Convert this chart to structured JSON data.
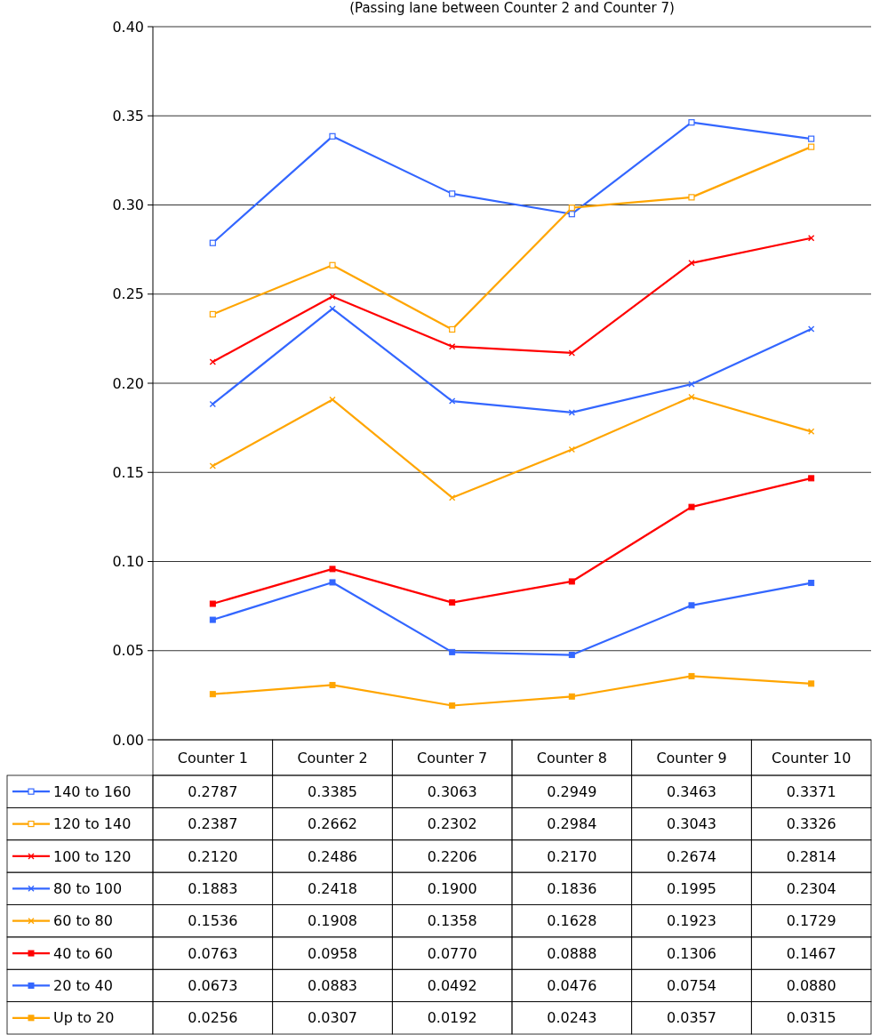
{
  "chart_data": {
    "type": "line",
    "subtitle": "(Passing lane between Counter 2 and Counter 7)",
    "categories": [
      "Counter 1",
      "Counter 2",
      "Counter 7",
      "Counter 8",
      "Counter 9",
      "Counter 10"
    ],
    "ylim": [
      0,
      0.4
    ],
    "yticks": [
      {
        "value": 0,
        "label": "0.00"
      },
      {
        "value": 0.05,
        "label": "0.05"
      },
      {
        "value": 0.1,
        "label": "0.10"
      },
      {
        "value": 0.15,
        "label": "0.15"
      },
      {
        "value": 0.2,
        "label": "0.20"
      },
      {
        "value": 0.25,
        "label": "0.25"
      },
      {
        "value": 0.3,
        "label": "0.30"
      },
      {
        "value": 0.35,
        "label": "0.35"
      },
      {
        "value": 0.4,
        "label": "0.40"
      }
    ],
    "grid": "y",
    "legend": "bottom",
    "line_style": "solid",
    "series": [
      {
        "name": "140 to 160",
        "color": "#3366ff",
        "marker": "square-open",
        "values": [
          0.2787,
          0.3385,
          0.3063,
          0.2949,
          0.3463,
          0.3371
        ],
        "value_labels": [
          "0.2787",
          "0.3385",
          "0.3063",
          "0.2949",
          "0.3463",
          "0.3371"
        ]
      },
      {
        "name": "120 to 140",
        "color": "#ffa500",
        "marker": "square-open",
        "values": [
          0.2387,
          0.2662,
          0.2302,
          0.2984,
          0.3043,
          0.3326
        ],
        "value_labels": [
          "0.2387",
          "0.2662",
          "0.2302",
          "0.2984",
          "0.3043",
          "0.3326"
        ]
      },
      {
        "name": "100 to 120",
        "color": "#ff0000",
        "marker": "cross",
        "values": [
          0.212,
          0.2486,
          0.2206,
          0.217,
          0.2674,
          0.2814
        ],
        "value_labels": [
          "0.2120",
          "0.2486",
          "0.2206",
          "0.2170",
          "0.2674",
          "0.2814"
        ]
      },
      {
        "name": "80 to 100",
        "color": "#3366ff",
        "marker": "cross",
        "values": [
          0.1883,
          0.2418,
          0.19,
          0.1836,
          0.1995,
          0.2304
        ],
        "value_labels": [
          "0.1883",
          "0.2418",
          "0.1900",
          "0.1836",
          "0.1995",
          "0.2304"
        ]
      },
      {
        "name": "60 to 80",
        "color": "#ffa500",
        "marker": "cross",
        "values": [
          0.1536,
          0.1908,
          0.1358,
          0.1628,
          0.1923,
          0.1729
        ],
        "value_labels": [
          "0.1536",
          "0.1908",
          "0.1358",
          "0.1628",
          "0.1923",
          "0.1729"
        ]
      },
      {
        "name": "40 to 60",
        "color": "#ff0000",
        "marker": "square",
        "values": [
          0.0763,
          0.0958,
          0.077,
          0.0888,
          0.1306,
          0.1467
        ],
        "value_labels": [
          "0.0763",
          "0.0958",
          "0.0770",
          "0.0888",
          "0.1306",
          "0.1467"
        ]
      },
      {
        "name": "20 to 40",
        "color": "#3366ff",
        "marker": "square",
        "values": [
          0.0673,
          0.0883,
          0.0492,
          0.0476,
          0.0754,
          0.088
        ],
        "value_labels": [
          "0.0673",
          "0.0883",
          "0.0492",
          "0.0476",
          "0.0754",
          "0.0880"
        ]
      },
      {
        "name": "Up to 20",
        "color": "#ffa500",
        "marker": "square",
        "values": [
          0.0256,
          0.0307,
          0.0192,
          0.0243,
          0.0357,
          0.0315
        ],
        "value_labels": [
          "0.0256",
          "0.0307",
          "0.0192",
          "0.0243",
          "0.0357",
          "0.0315"
        ]
      }
    ]
  }
}
